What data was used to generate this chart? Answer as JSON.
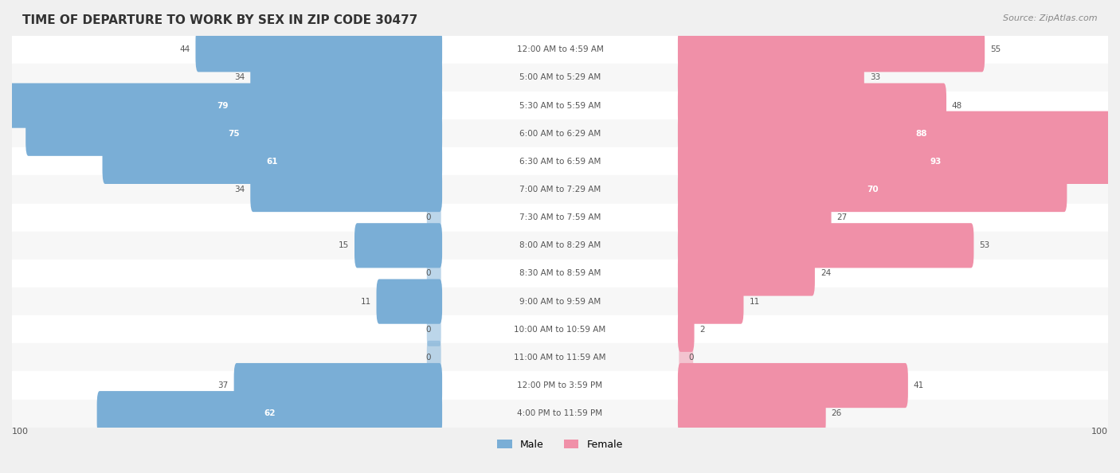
{
  "title": "TIME OF DEPARTURE TO WORK BY SEX IN ZIP CODE 30477",
  "source": "Source: ZipAtlas.com",
  "categories": [
    "12:00 AM to 4:59 AM",
    "5:00 AM to 5:29 AM",
    "5:30 AM to 5:59 AM",
    "6:00 AM to 6:29 AM",
    "6:30 AM to 6:59 AM",
    "7:00 AM to 7:29 AM",
    "7:30 AM to 7:59 AM",
    "8:00 AM to 8:29 AM",
    "8:30 AM to 8:59 AM",
    "9:00 AM to 9:59 AM",
    "10:00 AM to 10:59 AM",
    "11:00 AM to 11:59 AM",
    "12:00 PM to 3:59 PM",
    "4:00 PM to 11:59 PM"
  ],
  "male_values": [
    44,
    34,
    79,
    75,
    61,
    34,
    0,
    15,
    0,
    11,
    0,
    0,
    37,
    62
  ],
  "female_values": [
    55,
    33,
    48,
    88,
    93,
    70,
    27,
    53,
    24,
    11,
    2,
    0,
    41,
    26
  ],
  "male_color": "#7aaed6",
  "female_color": "#f090a8",
  "male_label": "Male",
  "female_label": "Female",
  "axis_max": 100,
  "bg_color": "#f0f0f0",
  "row_bg_light": "#f7f7f7",
  "row_bg_white": "#ffffff"
}
